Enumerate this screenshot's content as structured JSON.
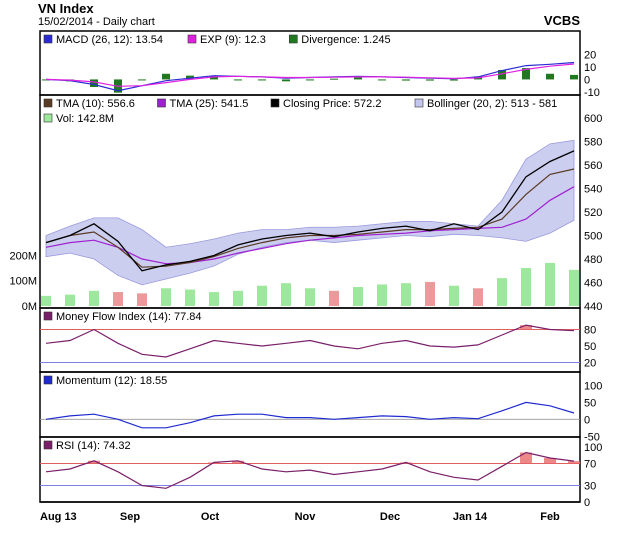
{
  "header": {
    "title": "VN Index",
    "subtitle": "15/02/2014 - Daily chart",
    "broker": "VCBS"
  },
  "x_axis": {
    "labels": [
      "Aug 13",
      "Sep",
      "Oct",
      "Nov",
      "Dec",
      "Jan 14",
      "Feb"
    ]
  },
  "colors": {
    "macd": "#2b2bd6",
    "macd_exp": "#e020e0",
    "divergence": "#1f7a1f",
    "tma10": "#5a3a22",
    "tma25": "#a020d0",
    "close": "#000000",
    "bollinger_fill": "#c4c6ee",
    "bollinger_stroke": "#8888d8",
    "vol_up": "#9de89d",
    "vol_down": "#ea9a9a",
    "mfi": "#7a1f6a",
    "momentum": "#1f2bd0",
    "rsi": "#7a1f6a",
    "overbought_fill": "#e86a6a",
    "guide_high": "#e06060",
    "guide_low": "#8080e0"
  },
  "chart_data": [
    {
      "type": "line",
      "panel": "macd",
      "legend": [
        {
          "label": "MACD (26, 12): 13.54",
          "color": "#2b2bd6"
        },
        {
          "label": "EXP (9): 12.3",
          "color": "#e020e0"
        },
        {
          "label": "Divergence: 1.245",
          "color": "#1f7a1f"
        }
      ],
      "ylim": [
        -10,
        25
      ],
      "yticks": [
        "20",
        "10",
        "0",
        "-10"
      ],
      "ytick_values": [
        20,
        10,
        0,
        -10
      ],
      "series": [
        {
          "name": "MACD (26, 12)",
          "values": [
            0,
            -1,
            -4,
            -9,
            -5,
            -1,
            1,
            3,
            2.5,
            2,
            1,
            1.5,
            2,
            2.5,
            2,
            1.5,
            1,
            0.5,
            2,
            7,
            11,
            12,
            13.5
          ]
        },
        {
          "name": "EXP (9)",
          "values": [
            0,
            -0.5,
            -2,
            -5.5,
            -5,
            -2.5,
            0,
            2,
            2.5,
            2,
            1.5,
            1.5,
            1.8,
            2,
            2,
            1.8,
            1.3,
            0.8,
            1.2,
            4.5,
            8,
            10.5,
            12.3
          ]
        }
      ]
    },
    {
      "type": "line",
      "panel": "price",
      "legend": [
        {
          "label": "TMA (10): 556.6",
          "color": "#5a3a22"
        },
        {
          "label": "TMA (25): 541.5",
          "color": "#a020d0"
        },
        {
          "label": "Closing Price: 572.2",
          "color": "#000000"
        },
        {
          "label": "Bollinger (20, 2): 513 - 581",
          "color": "#c4c6ee"
        },
        {
          "label": "Vol: 142.8M",
          "color": "#9de89d"
        }
      ],
      "ylim": [
        440,
        600
      ],
      "yticks": [
        "600",
        "580",
        "560",
        "540",
        "520",
        "500",
        "480",
        "460",
        "440"
      ],
      "ytick_values": [
        600,
        580,
        560,
        540,
        520,
        500,
        480,
        460,
        440
      ],
      "volume_ticks": [
        "200M",
        "100M",
        "0M"
      ],
      "volume_tick_values": [
        200,
        100,
        0
      ],
      "volume_max": 300,
      "series": [
        {
          "name": "Closing Price",
          "values": [
            494,
            500,
            510,
            495,
            470,
            475,
            478,
            483,
            492,
            497,
            500,
            502,
            499,
            503,
            506,
            508,
            504,
            510,
            505,
            520,
            550,
            563,
            572
          ]
        },
        {
          "name": "TMA (10)",
          "values": [
            494,
            500,
            503,
            490,
            473,
            474,
            477,
            482,
            489,
            494,
            498,
            500,
            500,
            501,
            503,
            505,
            505,
            506,
            507,
            514,
            535,
            552,
            556.6
          ]
        },
        {
          "name": "TMA (25)",
          "values": [
            490,
            494,
            496,
            490,
            480,
            476,
            477,
            480,
            485,
            489,
            493,
            496,
            498,
            500,
            501,
            502,
            504,
            505,
            506,
            507,
            514,
            530,
            541.5
          ]
        },
        {
          "name": "Bollinger upper",
          "values": [
            500,
            508,
            515,
            515,
            505,
            490,
            493,
            497,
            502,
            505,
            505,
            507,
            507,
            508,
            510,
            512,
            512,
            510,
            508,
            530,
            565,
            578,
            581
          ]
        },
        {
          "name": "Bollinger lower",
          "values": [
            482,
            485,
            480,
            466,
            458,
            463,
            468,
            474,
            484,
            490,
            494,
            496,
            494,
            496,
            498,
            500,
            499,
            501,
            500,
            498,
            495,
            502,
            513
          ]
        }
      ],
      "volume": [
        40,
        45,
        60,
        55,
        50,
        70,
        65,
        55,
        60,
        80,
        90,
        70,
        60,
        75,
        85,
        90,
        95,
        80,
        70,
        110,
        150,
        170,
        142.8
      ]
    },
    {
      "type": "line",
      "panel": "money_flow_index",
      "legend": [
        {
          "label": "Money Flow Index (14): 77.84",
          "color": "#7a1f6a"
        }
      ],
      "ylim": [
        10,
        90
      ],
      "yticks": [
        "80",
        "50",
        "20"
      ],
      "ytick_values": [
        80,
        50,
        20
      ],
      "guides": [
        80,
        20
      ],
      "series": [
        {
          "name": "Money Flow Index (14)",
          "values": [
            55,
            60,
            80,
            55,
            35,
            30,
            45,
            60,
            55,
            50,
            55,
            60,
            50,
            45,
            55,
            60,
            50,
            48,
            52,
            70,
            88,
            80,
            77.84
          ]
        }
      ]
    },
    {
      "type": "line",
      "panel": "momentum",
      "legend": [
        {
          "label": "Momentum (12): 18.55",
          "color": "#1f2bd0"
        }
      ],
      "ylim": [
        -55,
        110
      ],
      "yticks": [
        "100",
        "50",
        "0",
        "-50"
      ],
      "ytick_values": [
        100,
        50,
        0,
        -50
      ],
      "series": [
        {
          "name": "Momentum (12)",
          "values": [
            0,
            10,
            15,
            0,
            -25,
            -25,
            -10,
            10,
            15,
            15,
            5,
            5,
            0,
            5,
            10,
            8,
            0,
            5,
            2,
            25,
            50,
            40,
            18.55
          ]
        }
      ]
    },
    {
      "type": "line",
      "panel": "rsi",
      "legend": [
        {
          "label": "RSI (14): 74.32",
          "color": "#7a1f6a"
        }
      ],
      "ylim": [
        0,
        100
      ],
      "yticks": [
        "100",
        "70",
        "30",
        "0"
      ],
      "ytick_values": [
        100,
        70,
        30,
        0
      ],
      "guides": [
        70,
        30
      ],
      "series": [
        {
          "name": "RSI (14)",
          "values": [
            55,
            60,
            75,
            55,
            30,
            25,
            45,
            72,
            75,
            60,
            55,
            58,
            50,
            55,
            60,
            72,
            55,
            45,
            40,
            65,
            90,
            80,
            74.32
          ]
        }
      ]
    }
  ]
}
